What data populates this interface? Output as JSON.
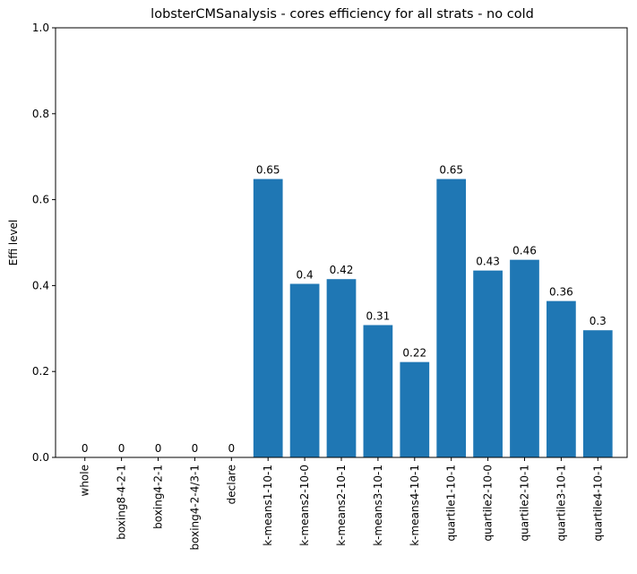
{
  "chart_data": {
    "type": "bar",
    "title": "lobsterCMSanalysis - cores efficiency for all strats - no cold",
    "xlabel": "",
    "ylabel": "Effi level",
    "ylim": [
      0,
      1.0
    ],
    "yticks": [
      "0.0",
      "0.2",
      "0.4",
      "0.6",
      "0.8",
      "1.0"
    ],
    "categories": [
      "whole",
      "boxing8-4-2-1",
      "boxing4-2-1",
      "boxing4-2-4/3-1",
      "declare",
      "k-means1-10-1",
      "k-means2-10-0",
      "k-means2-10-1",
      "k-means3-10-1",
      "k-means4-10-1",
      "quartile1-10-1",
      "quartile2-10-0",
      "quartile2-10-1",
      "quartile3-10-1",
      "quartile4-10-1"
    ],
    "values": [
      0,
      0,
      0,
      0,
      0,
      0.648,
      0.404,
      0.415,
      0.308,
      0.222,
      0.648,
      0.435,
      0.46,
      0.364,
      0.296
    ],
    "data_labels": [
      "0",
      "0",
      "0",
      "0",
      "0",
      "0.65",
      "0.4",
      "0.42",
      "0.31",
      "0.22",
      "0.65",
      "0.43",
      "0.46",
      "0.36",
      "0.3"
    ],
    "bar_color": "#1f77b4",
    "grid": false,
    "legend": "none"
  }
}
